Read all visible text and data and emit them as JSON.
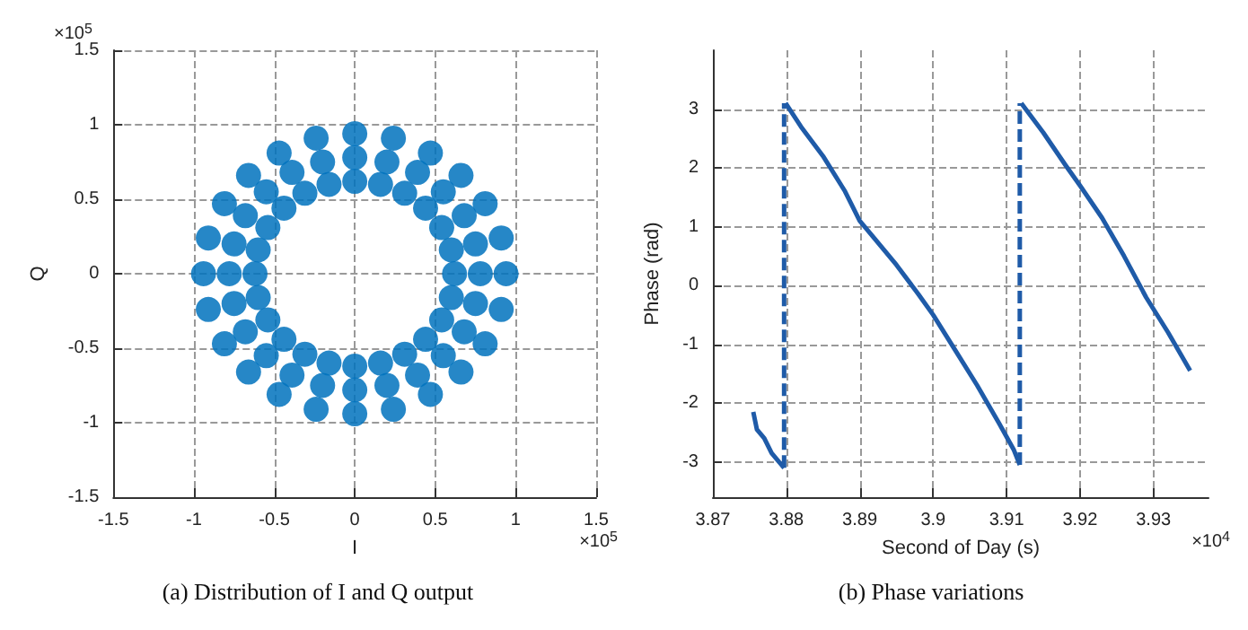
{
  "chart_data": [
    {
      "type": "scatter",
      "title": "(a) Distribution of I and Q output",
      "xlabel": "I",
      "ylabel": "Q",
      "annotations": [
        "×10$^{5}$",
        "×10$^{5}$"
      ],
      "xlim": [
        -1.5,
        1.5
      ],
      "ylim": [
        -1.5,
        1.5
      ],
      "xticks": [
        -1.5,
        -1,
        -0.5,
        0,
        0.5,
        1,
        1.5
      ],
      "yticks": [
        -1.5,
        -1,
        -0.5,
        0,
        0.5,
        1,
        1.5
      ],
      "grid": true,
      "marker": "circle",
      "series": [
        {
          "color": "#0072bd",
          "x": [
            0.62,
            0.6,
            0.54,
            0.44,
            0.31,
            0.16,
            0,
            -0.16,
            -0.31,
            -0.44,
            -0.54,
            -0.6,
            -0.62,
            -0.6,
            -0.54,
            -0.44,
            -0.31,
            -0.16,
            0,
            0.16,
            0.31,
            0.44,
            0.54,
            0.6,
            0.78,
            0.75,
            0.68,
            0.55,
            0.39,
            0.2,
            0,
            -0.2,
            -0.39,
            -0.55,
            -0.68,
            -0.75,
            -0.78,
            -0.75,
            -0.68,
            -0.55,
            -0.39,
            -0.2,
            0,
            0.2,
            0.39,
            0.55,
            0.68,
            0.75,
            0.94,
            0.91,
            0.81,
            0.66,
            0.47,
            0.24,
            0,
            -0.24,
            -0.47,
            -0.66,
            -0.81,
            -0.91,
            -0.94,
            -0.91,
            -0.81,
            -0.66,
            -0.47,
            -0.24,
            0,
            0.24,
            0.47,
            0.66,
            0.81,
            0.91
          ],
          "values": [
            0,
            0.16,
            0.31,
            0.44,
            0.54,
            0.6,
            0.62,
            0.6,
            0.54,
            0.44,
            0.31,
            0.16,
            0,
            -0.16,
            -0.31,
            -0.44,
            -0.54,
            -0.6,
            -0.62,
            -0.6,
            -0.54,
            -0.44,
            -0.31,
            -0.16,
            0,
            0.2,
            0.39,
            0.55,
            0.68,
            0.75,
            0.78,
            0.75,
            0.68,
            0.55,
            0.39,
            0.2,
            0,
            -0.2,
            -0.39,
            -0.55,
            -0.68,
            -0.75,
            -0.78,
            -0.75,
            -0.68,
            -0.55,
            -0.39,
            -0.2,
            0,
            0.24,
            0.47,
            0.66,
            0.81,
            0.91,
            0.94,
            0.91,
            0.81,
            0.66,
            0.47,
            0.24,
            0,
            -0.24,
            -0.47,
            -0.66,
            -0.81,
            -0.91,
            -0.94,
            -0.91,
            -0.81,
            -0.66,
            -0.47,
            -0.24
          ]
        }
      ]
    },
    {
      "type": "line",
      "title": "(b) Phase variations",
      "xlabel": "Second of Day (s)",
      "ylabel": "Phase (rad)",
      "annotations": [
        "×10$^{4}$"
      ],
      "xlim": [
        3.87,
        3.9375
      ],
      "ylim": [
        -3.6,
        4
      ],
      "xticks": [
        3.87,
        3.88,
        3.89,
        3.9,
        3.91,
        3.92,
        3.93
      ],
      "yticks": [
        -3,
        -2,
        -1,
        0,
        1,
        2,
        3
      ],
      "grid": true,
      "series": [
        {
          "color": "#1f5ba8",
          "line_style": "solid",
          "x": [
            3.8755,
            3.876,
            3.877,
            3.878,
            3.879,
            3.8797
          ],
          "values": [
            -2.15,
            -2.45,
            -2.6,
            -2.85,
            -3.0,
            -3.1
          ]
        },
        {
          "color": "#1f5ba8",
          "line_style": "solid",
          "x": [
            3.8799,
            3.882,
            3.885,
            3.888,
            3.89,
            3.892,
            3.895,
            3.898,
            3.9,
            3.903,
            3.906,
            3.909,
            3.911,
            3.9118
          ],
          "values": [
            3.1,
            2.7,
            2.2,
            1.6,
            1.1,
            0.8,
            0.35,
            -0.15,
            -0.5,
            -1.1,
            -1.7,
            -2.35,
            -2.8,
            -3.05
          ]
        },
        {
          "color": "#1f5ba8",
          "line_style": "solid",
          "x": [
            3.912,
            3.915,
            3.918,
            3.92,
            3.923,
            3.926,
            3.929,
            3.932,
            3.935
          ],
          "values": [
            3.1,
            2.6,
            2.05,
            1.7,
            1.15,
            0.5,
            -0.2,
            -0.8,
            -1.45
          ]
        },
        {
          "color": "#1f5ba8",
          "line_style": "dashed",
          "x": [
            3.8797,
            3.8797
          ],
          "values": [
            -3.1,
            3.1
          ]
        },
        {
          "color": "#1f5ba8",
          "line_style": "dashed",
          "x": [
            3.9118,
            3.9118
          ],
          "values": [
            -3.05,
            3.1
          ]
        }
      ]
    }
  ]
}
